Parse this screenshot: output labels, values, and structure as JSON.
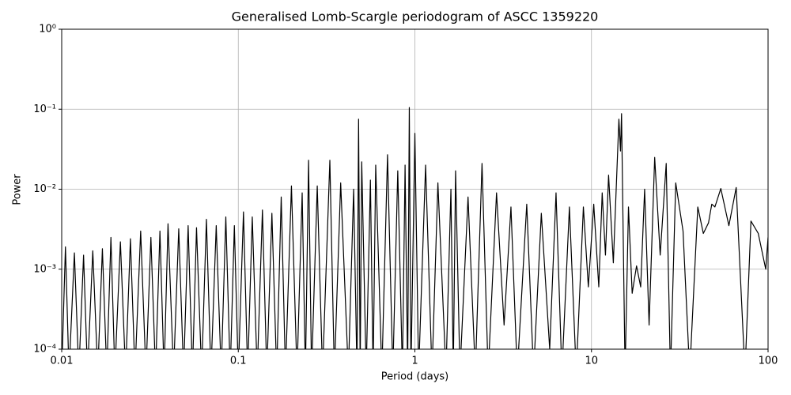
{
  "chart_data": {
    "type": "line",
    "title": "Generalised Lomb-Scargle periodogram of ASCC 1359220",
    "x_label": "Period (days)",
    "y_label": "Power",
    "x_scale": "log",
    "y_scale": "log",
    "grid": true,
    "xlim": [
      0.01,
      100
    ],
    "ylim": [
      0.0001,
      1
    ],
    "xticks": [
      0.01,
      0.1,
      1,
      10,
      100
    ],
    "yticks": [
      {
        "value": 0.0001,
        "label": "10⁻⁴"
      },
      {
        "value": 0.001,
        "label": "10⁻³"
      },
      {
        "value": 0.01,
        "label": "10⁻²"
      },
      {
        "value": 0.1,
        "label": "10⁻¹"
      },
      {
        "value": 1,
        "label": "10⁰"
      }
    ],
    "series": [
      {
        "color": "#000000",
        "x": [
          0.01,
          0.0105,
          0.011,
          0.0118,
          0.0125,
          0.0133,
          0.014,
          0.015,
          0.016,
          0.017,
          0.018,
          0.019,
          0.02,
          0.0215,
          0.023,
          0.0245,
          0.026,
          0.028,
          0.03,
          0.032,
          0.034,
          0.036,
          0.038,
          0.04,
          0.043,
          0.046,
          0.049,
          0.052,
          0.055,
          0.058,
          0.062,
          0.066,
          0.07,
          0.075,
          0.08,
          0.085,
          0.09,
          0.095,
          0.1,
          0.107,
          0.113,
          0.12,
          0.128,
          0.137,
          0.145,
          0.155,
          0.165,
          0.175,
          0.185,
          0.2,
          0.215,
          0.23,
          0.24,
          0.25,
          0.26,
          0.28,
          0.3,
          0.33,
          0.35,
          0.38,
          0.42,
          0.45,
          0.47,
          0.48,
          0.49,
          0.5,
          0.53,
          0.56,
          0.58,
          0.6,
          0.65,
          0.7,
          0.75,
          0.8,
          0.85,
          0.88,
          0.91,
          0.93,
          0.95,
          1.0,
          1.05,
          1.15,
          1.25,
          1.35,
          1.5,
          1.6,
          1.65,
          1.7,
          1.8,
          2.0,
          2.2,
          2.4,
          2.6,
          2.9,
          3.2,
          3.5,
          3.8,
          4.3,
          4.7,
          5.2,
          5.8,
          6.3,
          6.8,
          7.5,
          8.2,
          9.0,
          9.6,
          10.3,
          11.0,
          11.5,
          12.0,
          12.5,
          13.3,
          14.3,
          14.6,
          14.8,
          15.5,
          16.2,
          17.0,
          18.0,
          19.0,
          20.0,
          21.2,
          22.8,
          24.5,
          26.5,
          28.0,
          30.0,
          33.0,
          36.0,
          40.0,
          43.0,
          46.0,
          48.0,
          50.0,
          54.0,
          60.0,
          66.0,
          74.0,
          80.0,
          88.0,
          97.0,
          100.0
        ],
        "values": [
          5e-05,
          0.0019,
          5e-05,
          0.0016,
          5e-05,
          0.0015,
          5e-05,
          0.0017,
          5e-05,
          0.0018,
          5e-05,
          0.0025,
          5e-05,
          0.0022,
          5e-05,
          0.0024,
          5e-05,
          0.003,
          5e-05,
          0.0025,
          5e-05,
          0.003,
          5e-05,
          0.0037,
          5e-05,
          0.0032,
          5e-05,
          0.0035,
          5e-05,
          0.0033,
          5e-05,
          0.0042,
          5e-05,
          0.0035,
          5e-05,
          0.0045,
          5e-05,
          0.0035,
          5e-05,
          0.0052,
          5e-05,
          0.0045,
          5e-05,
          0.0055,
          5e-05,
          0.005,
          5e-05,
          0.008,
          5e-05,
          0.011,
          5e-05,
          0.009,
          5e-05,
          0.023,
          5e-05,
          0.011,
          5e-05,
          0.023,
          5e-05,
          0.012,
          5e-05,
          0.01,
          5e-05,
          0.075,
          5e-05,
          0.022,
          5e-05,
          0.013,
          5e-05,
          0.02,
          5e-05,
          0.027,
          5e-05,
          0.017,
          5e-05,
          0.02,
          5e-05,
          0.105,
          5e-05,
          0.05,
          5e-05,
          0.02,
          5e-05,
          0.012,
          5e-05,
          0.01,
          5e-05,
          0.017,
          5e-05,
          0.008,
          5e-05,
          0.021,
          5e-05,
          0.009,
          0.0002,
          0.006,
          5e-05,
          0.0065,
          5e-05,
          0.005,
          0.0001,
          0.009,
          5e-05,
          0.006,
          5e-05,
          0.006,
          0.0006,
          0.0065,
          0.0006,
          0.009,
          0.0015,
          0.015,
          0.0012,
          0.075,
          0.03,
          0.088,
          5e-05,
          0.006,
          0.0005,
          0.0011,
          0.0006,
          0.01,
          0.0002,
          0.025,
          0.0015,
          0.021,
          5e-05,
          0.012,
          0.003,
          5e-05,
          0.006,
          0.0028,
          0.0038,
          0.0065,
          0.006,
          0.0102,
          0.0035,
          0.0105,
          5e-05,
          0.004,
          0.0028,
          0.001,
          0.0025
        ]
      }
    ]
  }
}
